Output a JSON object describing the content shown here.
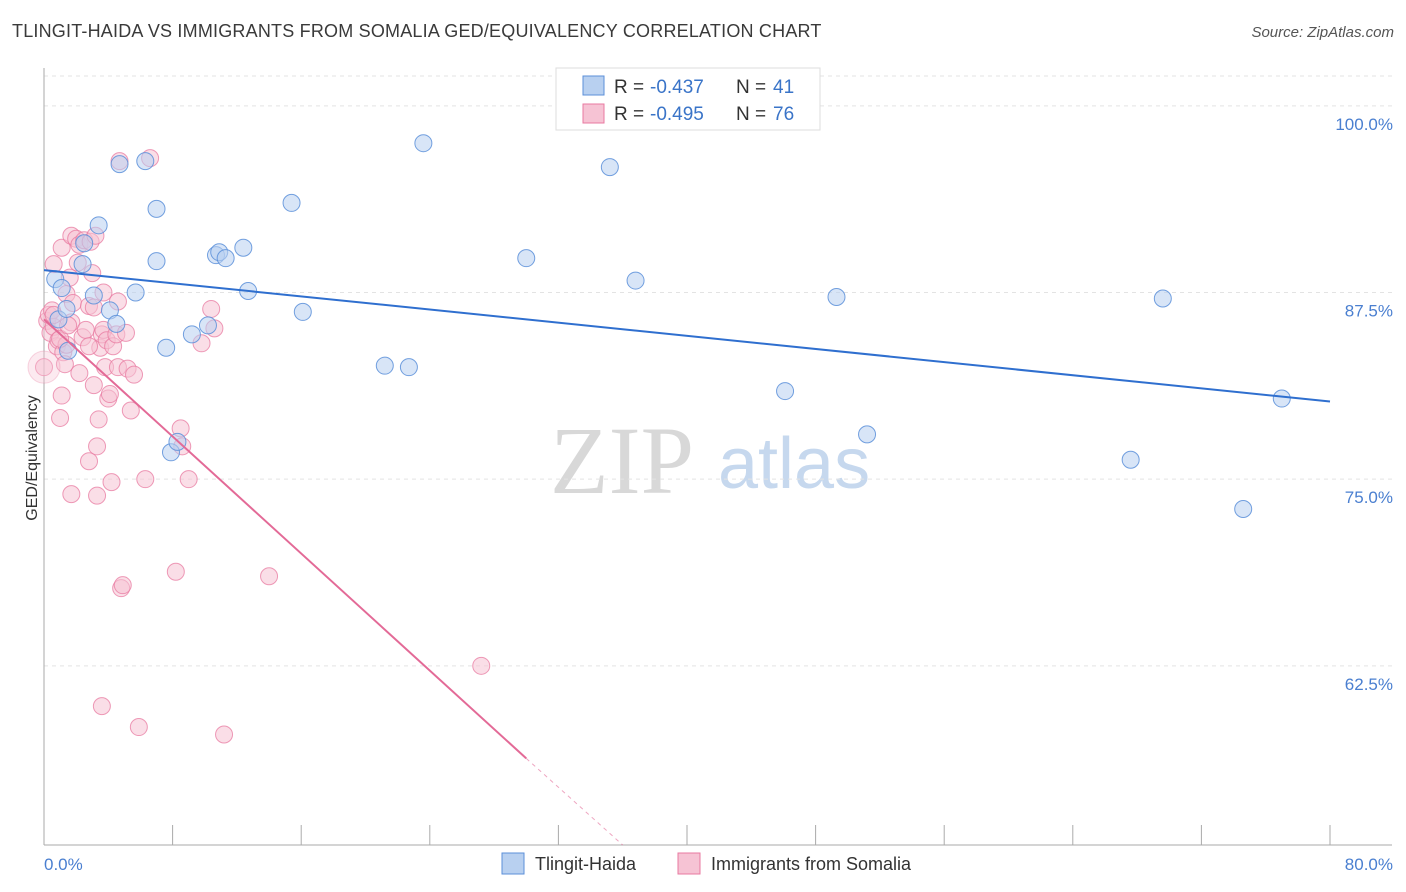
{
  "title": "TLINGIT-HAIDA VS IMMIGRANTS FROM SOMALIA GED/EQUIVALENCY CORRELATION CHART",
  "source": "Source: ZipAtlas.com",
  "watermark": {
    "zip": "ZIP",
    "atlas": "atlas"
  },
  "colors": {
    "blue": "#5b8fd9",
    "blue_fill": "#b8d0f0",
    "blue_line": "#2f6fcf",
    "pink": "#e87aa0",
    "pink_fill": "#f6c3d4",
    "pink_line": "#e36a97",
    "tick_text": "#4a7fd0",
    "grid": "#e3e3e3"
  },
  "legend": {
    "rows": [
      {
        "r_label": "R =",
        "r_value": "-0.437",
        "n_label": "N =",
        "n_value": "41"
      },
      {
        "r_label": "R =",
        "r_value": "-0.495",
        "n_label": "N =",
        "n_value": "76"
      }
    ]
  },
  "chart_data": {
    "type": "scatter",
    "title": "TLINGIT-HAIDA VS IMMIGRANTS FROM SOMALIA GED/EQUIVALENCY CORRELATION CHART",
    "xlabel": "",
    "ylabel": "GED/Equivalency",
    "xlim": [
      0,
      80
    ],
    "ylim": [
      50.5,
      102
    ],
    "x_tick_labels": [
      "0.0%",
      "80.0%"
    ],
    "y_ticks": [
      62.5,
      75.0,
      87.5,
      100.0
    ],
    "y_tick_labels": [
      "62.5%",
      "75.0%",
      "87.5%",
      "100.0%"
    ],
    "grid": true,
    "legend_position": "bottom",
    "series": [
      {
        "name": "Tlingit-Haida",
        "color": "#5b8fd9",
        "trend": {
          "x": [
            0,
            80
          ],
          "y": [
            89.0,
            80.2
          ]
        },
        "points": [
          [
            0.7,
            88.4
          ],
          [
            0.9,
            85.7
          ],
          [
            1.1,
            87.8
          ],
          [
            1.4,
            86.4
          ],
          [
            1.5,
            83.6
          ],
          [
            2.4,
            89.4
          ],
          [
            2.5,
            90.8
          ],
          [
            3.1,
            87.3
          ],
          [
            3.4,
            92.0
          ],
          [
            4.1,
            86.3
          ],
          [
            4.5,
            85.4
          ],
          [
            4.7,
            96.1
          ],
          [
            5.7,
            87.5
          ],
          [
            6.3,
            96.3
          ],
          [
            7.0,
            93.1
          ],
          [
            7.0,
            89.6
          ],
          [
            7.6,
            83.8
          ],
          [
            7.9,
            76.8
          ],
          [
            8.3,
            77.5
          ],
          [
            9.2,
            84.7
          ],
          [
            10.2,
            85.3
          ],
          [
            10.7,
            90.0
          ],
          [
            10.9,
            90.2
          ],
          [
            11.3,
            89.8
          ],
          [
            12.4,
            90.5
          ],
          [
            12.7,
            87.6
          ],
          [
            15.4,
            93.5
          ],
          [
            16.1,
            86.2
          ],
          [
            21.2,
            82.6
          ],
          [
            22.7,
            82.5
          ],
          [
            23.6,
            97.5
          ],
          [
            30.0,
            89.8
          ],
          [
            35.2,
            95.9
          ],
          [
            36.8,
            88.3
          ],
          [
            46.1,
            80.9
          ],
          [
            49.3,
            87.2
          ],
          [
            51.2,
            78.0
          ],
          [
            67.6,
            76.3
          ],
          [
            69.6,
            87.1
          ],
          [
            74.6,
            73.0
          ],
          [
            77.0,
            80.4
          ]
        ]
      },
      {
        "name": "Immigrants from Somalia",
        "color": "#e87aa0",
        "trend": {
          "x": [
            0,
            30
          ],
          "y": [
            85.7,
            56.3
          ]
        },
        "trend_dashed": {
          "x": [
            30,
            36
          ],
          "y": [
            56.3,
            50.5
          ]
        },
        "points": [
          [
            0.0,
            82.5
          ],
          [
            0.2,
            85.6
          ],
          [
            0.3,
            86.0
          ],
          [
            0.4,
            84.8
          ],
          [
            0.5,
            86.3
          ],
          [
            0.6,
            85.2
          ],
          [
            0.6,
            89.4
          ],
          [
            0.8,
            83.9
          ],
          [
            0.9,
            84.3
          ],
          [
            1.0,
            79.1
          ],
          [
            1.1,
            80.6
          ],
          [
            1.1,
            90.5
          ],
          [
            1.2,
            83.5
          ],
          [
            1.3,
            82.7
          ],
          [
            1.4,
            87.4
          ],
          [
            1.4,
            84.0
          ],
          [
            1.6,
            88.5
          ],
          [
            1.7,
            91.3
          ],
          [
            1.7,
            85.5
          ],
          [
            1.7,
            74.0
          ],
          [
            1.8,
            86.8
          ],
          [
            2.0,
            91.1
          ],
          [
            2.1,
            89.5
          ],
          [
            2.2,
            82.1
          ],
          [
            2.2,
            90.7
          ],
          [
            2.4,
            84.5
          ],
          [
            2.5,
            91.0
          ],
          [
            2.6,
            85.0
          ],
          [
            2.8,
            86.6
          ],
          [
            2.8,
            76.2
          ],
          [
            2.9,
            90.9
          ],
          [
            3.0,
            88.8
          ],
          [
            3.1,
            81.3
          ],
          [
            3.2,
            91.3
          ],
          [
            3.3,
            77.2
          ],
          [
            3.3,
            73.9
          ],
          [
            3.4,
            79.0
          ],
          [
            3.5,
            83.8
          ],
          [
            3.6,
            84.7
          ],
          [
            3.7,
            87.5
          ],
          [
            3.7,
            85.0
          ],
          [
            3.8,
            82.5
          ],
          [
            3.9,
            84.3
          ],
          [
            4.0,
            80.4
          ],
          [
            4.1,
            80.7
          ],
          [
            4.2,
            74.8
          ],
          [
            4.3,
            83.9
          ],
          [
            4.5,
            84.7
          ],
          [
            4.6,
            86.9
          ],
          [
            4.6,
            82.5
          ],
          [
            4.7,
            96.3
          ],
          [
            4.8,
            67.7
          ],
          [
            4.9,
            67.9
          ],
          [
            5.1,
            84.8
          ],
          [
            5.2,
            82.4
          ],
          [
            5.4,
            79.6
          ],
          [
            5.6,
            82.0
          ],
          [
            5.9,
            58.4
          ],
          [
            6.3,
            75.0
          ],
          [
            6.6,
            96.5
          ],
          [
            8.2,
            68.8
          ],
          [
            8.5,
            78.4
          ],
          [
            8.6,
            77.2
          ],
          [
            9.0,
            75.0
          ],
          [
            9.8,
            84.1
          ],
          [
            10.4,
            86.4
          ],
          [
            10.6,
            85.1
          ],
          [
            11.2,
            57.9
          ],
          [
            14.0,
            68.5
          ],
          [
            27.2,
            62.5
          ],
          [
            3.6,
            59.8
          ],
          [
            0.6,
            86.0
          ],
          [
            1.0,
            84.4
          ],
          [
            2.8,
            83.9
          ],
          [
            3.1,
            86.5
          ],
          [
            1.5,
            85.3
          ]
        ]
      }
    ]
  },
  "bottom_legend": {
    "items": [
      {
        "label": "Tlingit-Haida"
      },
      {
        "label": "Immigrants from Somalia"
      }
    ]
  }
}
